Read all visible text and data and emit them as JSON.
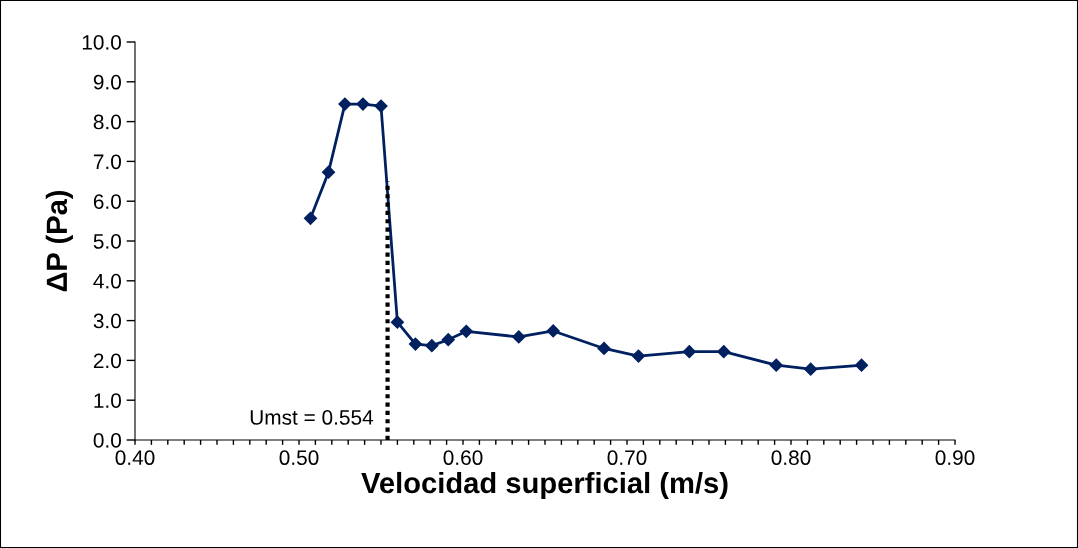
{
  "chart_data": {
    "type": "line",
    "xlabel": "Velocidad superficial (m/s)",
    "ylabel": "ΔP (Pa)",
    "xlim": [
      0.4,
      0.9
    ],
    "ylim": [
      0,
      10
    ],
    "xticks": [
      {
        "value": 0.4,
        "label": "0.40"
      },
      {
        "value": 0.41,
        "label": null
      },
      {
        "value": 0.42,
        "label": null
      },
      {
        "value": 0.43,
        "label": null
      },
      {
        "value": 0.44,
        "label": null
      },
      {
        "value": 0.45,
        "label": null
      },
      {
        "value": 0.46,
        "label": null
      },
      {
        "value": 0.47,
        "label": null
      },
      {
        "value": 0.48,
        "label": null
      },
      {
        "value": 0.49,
        "label": null
      },
      {
        "value": 0.5,
        "label": "0.50"
      },
      {
        "value": 0.51,
        "label": null
      },
      {
        "value": 0.52,
        "label": null
      },
      {
        "value": 0.53,
        "label": null
      },
      {
        "value": 0.54,
        "label": null
      },
      {
        "value": 0.55,
        "label": null
      },
      {
        "value": 0.56,
        "label": null
      },
      {
        "value": 0.57,
        "label": null
      },
      {
        "value": 0.58,
        "label": null
      },
      {
        "value": 0.59,
        "label": null
      },
      {
        "value": 0.6,
        "label": "0.60"
      },
      {
        "value": 0.61,
        "label": null
      },
      {
        "value": 0.62,
        "label": null
      },
      {
        "value": 0.63,
        "label": null
      },
      {
        "value": 0.64,
        "label": null
      },
      {
        "value": 0.65,
        "label": null
      },
      {
        "value": 0.66,
        "label": null
      },
      {
        "value": 0.67,
        "label": null
      },
      {
        "value": 0.68,
        "label": null
      },
      {
        "value": 0.69,
        "label": null
      },
      {
        "value": 0.7,
        "label": "0.70"
      },
      {
        "value": 0.71,
        "label": null
      },
      {
        "value": 0.72,
        "label": null
      },
      {
        "value": 0.73,
        "label": null
      },
      {
        "value": 0.74,
        "label": null
      },
      {
        "value": 0.75,
        "label": null
      },
      {
        "value": 0.76,
        "label": null
      },
      {
        "value": 0.77,
        "label": null
      },
      {
        "value": 0.78,
        "label": null
      },
      {
        "value": 0.79,
        "label": null
      },
      {
        "value": 0.8,
        "label": "0.80"
      },
      {
        "value": 0.81,
        "label": null
      },
      {
        "value": 0.82,
        "label": null
      },
      {
        "value": 0.83,
        "label": null
      },
      {
        "value": 0.84,
        "label": null
      },
      {
        "value": 0.85,
        "label": null
      },
      {
        "value": 0.86,
        "label": null
      },
      {
        "value": 0.87,
        "label": null
      },
      {
        "value": 0.88,
        "label": null
      },
      {
        "value": 0.89,
        "label": null
      },
      {
        "value": 0.9,
        "label": "0.90"
      }
    ],
    "yticks": [
      {
        "value": 0,
        "label": "0.0"
      },
      {
        "value": 1,
        "label": "1.0"
      },
      {
        "value": 2,
        "label": "2.0"
      },
      {
        "value": 3,
        "label": "3.0"
      },
      {
        "value": 4,
        "label": "4.0"
      },
      {
        "value": 5,
        "label": "5.0"
      },
      {
        "value": 6,
        "label": "6.0"
      },
      {
        "value": 7,
        "label": "7.0"
      },
      {
        "value": 8,
        "label": "8.0"
      },
      {
        "value": 9,
        "label": "9.0"
      },
      {
        "value": 10,
        "label": "10.0"
      }
    ],
    "grid": false,
    "legend": false,
    "series": [
      {
        "color": "#002060",
        "marker": "diamond",
        "line_style": "solid",
        "x": [
          0.507,
          0.518,
          0.528,
          0.539,
          0.55,
          0.56,
          0.571,
          0.581,
          0.591,
          0.602,
          0.634,
          0.655,
          0.686,
          0.707,
          0.738,
          0.759,
          0.791,
          0.812,
          0.843
        ],
        "values": [
          5.57,
          6.73,
          8.44,
          8.44,
          8.39,
          2.96,
          2.41,
          2.37,
          2.52,
          2.73,
          2.59,
          2.74,
          2.3,
          2.11,
          2.22,
          2.22,
          1.88,
          1.78,
          1.88
        ]
      },
      {
        "color": "#000000",
        "marker": "none",
        "line_style": "dotted",
        "x": [
          0.554,
          0.554
        ],
        "values": [
          0,
          6.5
        ]
      }
    ],
    "annotations": [
      {
        "text": "Umst = 0.554",
        "x": 0.554,
        "y": 0
      }
    ]
  }
}
